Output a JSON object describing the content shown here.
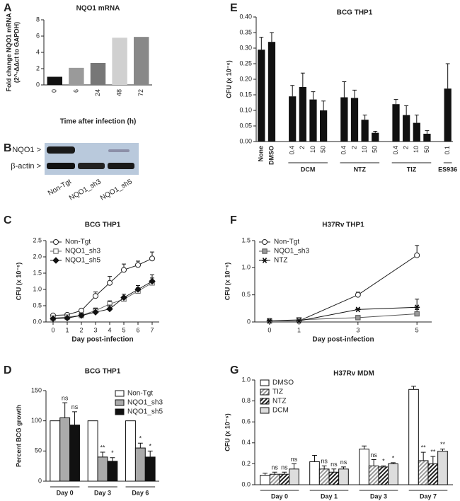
{
  "chart_data": [
    {
      "type": "bar",
      "panel": "A",
      "title": "NQO1 mRNA",
      "ylabel": [
        "Fold change NQO1 mRNA",
        "(2^-ΔΔct to GAPDH)"
      ],
      "xlabel": "Time after infection (h)",
      "categories": [
        "0",
        "6",
        "24",
        "48",
        "72"
      ],
      "values": [
        1,
        2.1,
        2.7,
        5.8,
        5.9
      ],
      "colors": [
        "#111111",
        "#9a9a9a",
        "#777777",
        "#d0d0d0",
        "#888888"
      ],
      "ylim": [
        0,
        8
      ],
      "yticks": [
        0,
        2,
        4,
        6,
        8
      ]
    },
    {
      "type": "line",
      "panel": "C",
      "title": "BCG THP1",
      "ylabel": [
        "CFU (x 10⁻⁶)"
      ],
      "xlabel": "Day post-infection",
      "x": [
        0,
        1,
        2,
        3,
        4,
        5,
        6,
        7
      ],
      "xlim": [
        -0.5,
        7.5
      ],
      "xticks": [
        0,
        1,
        2,
        3,
        4,
        5,
        6,
        7
      ],
      "ylim": [
        0,
        2.5
      ],
      "yticks": [
        {
          "value": 0,
          "label": "0.0"
        },
        0.5,
        {
          "value": 1,
          "label": "1.0"
        },
        1.5,
        {
          "value": 2,
          "label": "2.0"
        },
        2.5
      ],
      "legend": "upper left",
      "series": [
        {
          "name": "Non-Tgt",
          "color": "#222222",
          "marker": "circle",
          "marker_fill": "#ffffff",
          "values": [
            0.2,
            0.22,
            0.35,
            0.8,
            1.2,
            1.6,
            1.75,
            1.95
          ],
          "errors": [
            0.03,
            0.03,
            0.05,
            0.12,
            0.2,
            0.18,
            0.12,
            0.2
          ]
        },
        {
          "name": "NQO1_sh3",
          "color": "#666666",
          "marker": "square",
          "marker_fill": "#ffffff",
          "values": [
            0.12,
            0.15,
            0.2,
            0.35,
            0.55,
            0.7,
            0.95,
            1.2
          ],
          "errors": [
            0.02,
            0.02,
            0.05,
            0.08,
            0.1,
            0.08,
            0.1,
            0.15
          ]
        },
        {
          "name": "NQO1_sh5",
          "color": "#111111",
          "marker": "diamond",
          "marker_fill": "#111111",
          "values": [
            0.1,
            0.12,
            0.2,
            0.3,
            0.4,
            0.75,
            1.0,
            1.25
          ],
          "errors": [
            0.02,
            0.02,
            0.05,
            0.1,
            0.12,
            0.1,
            0.12,
            0.2
          ]
        }
      ]
    },
    {
      "type": "grouped_bar",
      "panel": "D",
      "title": "BCG THP1",
      "ylabel": [
        "Percent BCG growth"
      ],
      "categories": [
        "Day 0",
        "Day 3",
        "Day 6"
      ],
      "ylim": [
        0,
        150
      ],
      "yticks": [
        0,
        50,
        100,
        150
      ],
      "legend": "upper right",
      "series": [
        {
          "name": "Non-Tgt",
          "color": "#ffffff",
          "values": [
            100,
            100,
            100
          ]
        },
        {
          "name": "NQO1_sh3",
          "color": "#aaaaaa",
          "values": [
            105,
            40,
            55
          ],
          "errors": [
            25,
            8,
            8
          ],
          "annotations": [
            "ns",
            "**",
            "*"
          ]
        },
        {
          "name": "NQO1_sh5",
          "color": "#111111",
          "values": [
            93,
            33,
            40
          ],
          "errors": [
            22,
            6,
            10
          ],
          "annotations": [
            "ns",
            "*",
            "*"
          ]
        }
      ]
    },
    {
      "type": "bar",
      "panel": "E",
      "title": "BCG THP1",
      "ylabel": [
        "CFU (x 10⁻⁶)"
      ],
      "color": "#111111",
      "ylim": [
        0,
        0.4
      ],
      "yticks": [
        {
          "value": 0,
          "label": "0.00"
        },
        0.05,
        {
          "value": 0.1,
          "label": "0.10"
        },
        0.15,
        {
          "value": 0.2,
          "label": "0.20"
        },
        0.25,
        {
          "value": 0.3,
          "label": "0.30"
        },
        0.35,
        {
          "value": 0.4,
          "label": "0.40"
        }
      ],
      "groups": [
        {
          "categories": [
            "None",
            "DMSO"
          ],
          "values": [
            0.295,
            0.32
          ],
          "errors": [
            0.04,
            0.03
          ]
        },
        {
          "name": "DCM",
          "categories": [
            "0.4",
            "2",
            "10",
            "50"
          ],
          "values": [
            0.145,
            0.175,
            0.135,
            0.1
          ],
          "errors": [
            0.035,
            0.045,
            0.025,
            0.03
          ]
        },
        {
          "name": "NTZ",
          "categories": [
            "0.4",
            "2",
            "10",
            "50"
          ],
          "values": [
            0.142,
            0.14,
            0.07,
            0.028
          ],
          "errors": [
            0.05,
            0.025,
            0.015,
            0.005
          ]
        },
        {
          "name": "TIZ",
          "categories": [
            "0.4",
            "2",
            "10",
            "50"
          ],
          "values": [
            0.12,
            0.085,
            0.06,
            0.025
          ],
          "errors": [
            0.015,
            0.03,
            0.025,
            0.01
          ]
        },
        {
          "name": "ES936",
          "categories": [
            "0.1"
          ],
          "values": [
            0.17
          ],
          "errors": [
            0.08
          ]
        }
      ]
    },
    {
      "type": "line",
      "panel": "F",
      "title": "H37Rv THP1",
      "ylabel": [
        "CFU (x 10⁻⁶)"
      ],
      "xlabel": "Day post-infection",
      "x": [
        0,
        1,
        3,
        5
      ],
      "xlim": [
        -0.5,
        5.5
      ],
      "xticks": [
        0,
        1,
        3,
        5
      ],
      "ylim": [
        0,
        1.5
      ],
      "yticks": [
        0,
        0.5,
        {
          "value": 1,
          "label": "1.0"
        },
        1.5
      ],
      "legend": "upper left",
      "series": [
        {
          "name": "Non-Tgt",
          "color": "#222222",
          "marker": "circle",
          "marker_fill": "#ffffff",
          "values": [
            0.02,
            0.02,
            0.5,
            1.23
          ],
          "errors": [
            0.01,
            0.01,
            0.05,
            0.18
          ]
        },
        {
          "name": "NQO1_sh3",
          "color": "#555555",
          "marker": "square",
          "marker_fill": "#999999",
          "values": [
            0.02,
            0.04,
            0.08,
            0.15
          ],
          "errors": [
            0.01,
            0.02,
            0.03,
            0.08
          ]
        },
        {
          "name": "NTZ",
          "color": "#111111",
          "marker": "asterisk",
          "marker_fill": "#111111",
          "values": [
            0.02,
            0.02,
            0.23,
            0.27
          ],
          "errors": [
            0.01,
            0.01,
            0.02,
            0.15
          ]
        }
      ]
    },
    {
      "type": "grouped_bar",
      "panel": "G",
      "title": "H37Rv MDM",
      "ylabel": [
        "CFU (x 10⁻⁶)"
      ],
      "categories": [
        "Day 0",
        "Day 1",
        "Day 3",
        "Day 7"
      ],
      "ylim": [
        0,
        1
      ],
      "yticks": [
        {
          "value": 0,
          "label": "0.0"
        },
        0.2,
        0.4,
        0.6,
        0.8,
        {
          "value": 1,
          "label": "1.0"
        }
      ],
      "legend": "upper left",
      "series": [
        {
          "name": "DMSO",
          "color": "#ffffff",
          "values": [
            0.09,
            0.22,
            0.34,
            0.91
          ],
          "errors": [
            0.02,
            0.06,
            0.03,
            0.03
          ]
        },
        {
          "name": "TIZ",
          "color": "#999999",
          "pattern": "hatch",
          "values": [
            0.1,
            0.15,
            0.18,
            0.23
          ],
          "errors": [
            0.02,
            0.03,
            0.06,
            0.08
          ],
          "annotations": [
            "ns",
            "ns",
            "ns",
            "**"
          ]
        },
        {
          "name": "NTZ",
          "color": "#222222",
          "pattern": "hatch",
          "values": [
            0.1,
            0.12,
            0.17,
            0.2
          ],
          "errors": [
            0.02,
            0.03,
            0.01,
            0.07
          ],
          "annotations": [
            "ns",
            "ns",
            "*",
            "**"
          ]
        },
        {
          "name": "DCM",
          "color": "#dddddd",
          "values": [
            0.15,
            0.15,
            0.2,
            0.32
          ],
          "errors": [
            0.05,
            0.02,
            0.01,
            0.02
          ],
          "annotations": [
            "ns",
            "ns",
            "*",
            "**"
          ]
        }
      ]
    }
  ],
  "blot": {
    "panel": "B",
    "rows": [
      "NQO1 >",
      "β-actin >"
    ],
    "lanes": [
      "Non-Tgt",
      "NQO1_sh3",
      "NQO1_sh5"
    ]
  }
}
